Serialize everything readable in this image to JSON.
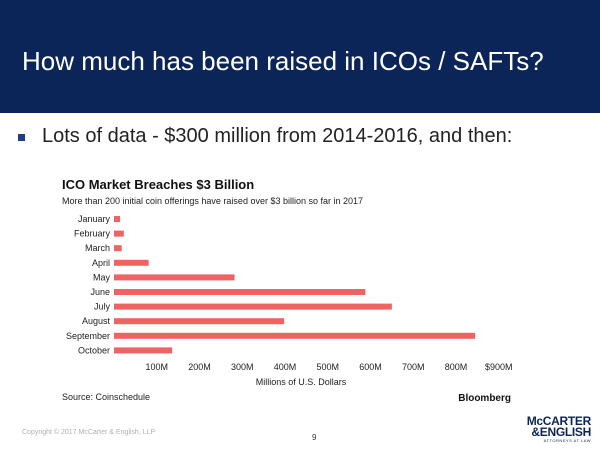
{
  "slide": {
    "title": "How much has been raised in ICOs / SAFTs?",
    "bullet": "Lots of data - $300 million from 2014-2016, and then:",
    "copyright": "Copyright © 2017 McCarter & English, LLP",
    "page_number": "9",
    "logo_line1": "McCARTER",
    "logo_line2": "&ENGLISH",
    "logo_sub": "ATTORNEYS AT LAW"
  },
  "colors": {
    "header": "#0c2559",
    "bar": "#ef6363"
  },
  "chart_data": {
    "type": "bar",
    "orientation": "horizontal",
    "title": "ICO Market Breaches $3 Billion",
    "subtitle": "More than 200 initial coin offerings have raised over $3 billion so far in 2017",
    "categories": [
      "January",
      "February",
      "March",
      "April",
      "May",
      "June",
      "July",
      "August",
      "September",
      "October"
    ],
    "values": [
      14,
      23,
      18,
      81,
      282,
      588,
      650,
      398,
      845,
      136
    ],
    "xlabel": "Millions of U.S. Dollars",
    "xlim": [
      0,
      900
    ],
    "xticks": [
      100,
      200,
      300,
      400,
      500,
      600,
      700,
      800,
      900
    ],
    "xtick_labels": [
      "100M",
      "200M",
      "300M",
      "400M",
      "500M",
      "600M",
      "700M",
      "800M",
      "$900M"
    ],
    "source": "Source: Coinschedule",
    "brand": "Bloomberg"
  }
}
